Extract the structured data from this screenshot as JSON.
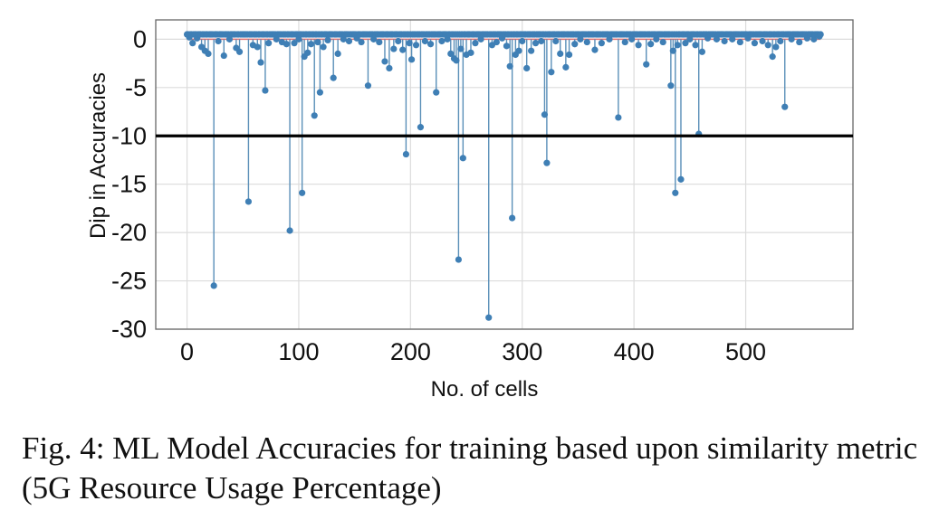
{
  "figure": {
    "caption": "Fig. 4: ML Model Accuracies for training based upon similarity metric (5G Resource Usage Percentage)"
  },
  "chart_data": {
    "type": "scatter",
    "style": "stem",
    "title": "",
    "xlabel": "No. of cells",
    "ylabel": "Dip in Accuracies",
    "xlim": [
      -28,
      596
    ],
    "ylim": [
      -30,
      2
    ],
    "xticks": [
      0,
      100,
      200,
      300,
      400,
      500
    ],
    "yticks": [
      0,
      -5,
      -10,
      -15,
      -20,
      -25,
      -30
    ],
    "grid": true,
    "point_color": "#3f7fb5",
    "stem_color": "#5a8fb8",
    "baseline_color": "#e07070",
    "threshold_color": "#000000",
    "threshold": -10,
    "n_points": 568,
    "baseline_value": 0.5,
    "dips": [
      {
        "x": 2,
        "y": 0.2
      },
      {
        "x": 5,
        "y": -0.4
      },
      {
        "x": 9,
        "y": 0.1
      },
      {
        "x": 13,
        "y": -0.8
      },
      {
        "x": 16,
        "y": -1.2
      },
      {
        "x": 19,
        "y": -1.5
      },
      {
        "x": 24,
        "y": -25.5
      },
      {
        "x": 28,
        "y": -0.2
      },
      {
        "x": 33,
        "y": -1.7
      },
      {
        "x": 38,
        "y": 0.0
      },
      {
        "x": 44,
        "y": -0.9
      },
      {
        "x": 47,
        "y": -1.3
      },
      {
        "x": 55,
        "y": -16.8
      },
      {
        "x": 59,
        "y": -0.6
      },
      {
        "x": 63,
        "y": -0.8
      },
      {
        "x": 66,
        "y": -2.4
      },
      {
        "x": 70,
        "y": -5.3
      },
      {
        "x": 73,
        "y": -0.4
      },
      {
        "x": 80,
        "y": 0.0
      },
      {
        "x": 85,
        "y": -0.3
      },
      {
        "x": 89,
        "y": -0.5
      },
      {
        "x": 92,
        "y": -19.8
      },
      {
        "x": 96,
        "y": -0.4
      },
      {
        "x": 100,
        "y": 0.0
      },
      {
        "x": 103,
        "y": -15.9
      },
      {
        "x": 105,
        "y": -1.8
      },
      {
        "x": 108,
        "y": -1.4
      },
      {
        "x": 111,
        "y": -0.5
      },
      {
        "x": 114,
        "y": -7.9
      },
      {
        "x": 117,
        "y": -0.3
      },
      {
        "x": 119,
        "y": -5.5
      },
      {
        "x": 122,
        "y": -0.8
      },
      {
        "x": 126,
        "y": -0.1
      },
      {
        "x": 131,
        "y": -4.0
      },
      {
        "x": 135,
        "y": -1.5
      },
      {
        "x": 140,
        "y": 0.0
      },
      {
        "x": 145,
        "y": -0.2
      },
      {
        "x": 152,
        "y": 0.1
      },
      {
        "x": 156,
        "y": -0.3
      },
      {
        "x": 162,
        "y": -4.8
      },
      {
        "x": 167,
        "y": 0.0
      },
      {
        "x": 172,
        "y": -0.3
      },
      {
        "x": 177,
        "y": -2.3
      },
      {
        "x": 181,
        "y": -3.0
      },
      {
        "x": 185,
        "y": -1.0
      },
      {
        "x": 189,
        "y": -0.2
      },
      {
        "x": 193,
        "y": -1.1
      },
      {
        "x": 196,
        "y": -11.9
      },
      {
        "x": 199,
        "y": -0.4
      },
      {
        "x": 201,
        "y": -2.1
      },
      {
        "x": 205,
        "y": -0.6
      },
      {
        "x": 209,
        "y": -9.1
      },
      {
        "x": 213,
        "y": -0.2
      },
      {
        "x": 218,
        "y": -0.5
      },
      {
        "x": 223,
        "y": -5.5
      },
      {
        "x": 228,
        "y": -0.2
      },
      {
        "x": 233,
        "y": 0.0
      },
      {
        "x": 236,
        "y": -1.5
      },
      {
        "x": 239,
        "y": -2.0
      },
      {
        "x": 241,
        "y": -2.2
      },
      {
        "x": 243,
        "y": -22.8
      },
      {
        "x": 245,
        "y": -1.0
      },
      {
        "x": 247,
        "y": -12.3
      },
      {
        "x": 250,
        "y": -1.6
      },
      {
        "x": 254,
        "y": -1.4
      },
      {
        "x": 258,
        "y": -0.4
      },
      {
        "x": 263,
        "y": 0.0
      },
      {
        "x": 270,
        "y": -28.8
      },
      {
        "x": 273,
        "y": -0.6
      },
      {
        "x": 277,
        "y": -0.3
      },
      {
        "x": 282,
        "y": 0.1
      },
      {
        "x": 286,
        "y": -0.7
      },
      {
        "x": 289,
        "y": -2.8
      },
      {
        "x": 291,
        "y": -18.5
      },
      {
        "x": 294,
        "y": -1.6
      },
      {
        "x": 297,
        "y": -1.2
      },
      {
        "x": 300,
        "y": -0.2
      },
      {
        "x": 304,
        "y": -3.0
      },
      {
        "x": 308,
        "y": -1.2
      },
      {
        "x": 312,
        "y": -0.4
      },
      {
        "x": 317,
        "y": -0.2
      },
      {
        "x": 320,
        "y": -7.8
      },
      {
        "x": 322,
        "y": -12.8
      },
      {
        "x": 326,
        "y": -3.4
      },
      {
        "x": 330,
        "y": -0.2
      },
      {
        "x": 334,
        "y": -1.5
      },
      {
        "x": 339,
        "y": -2.9
      },
      {
        "x": 342,
        "y": -1.6
      },
      {
        "x": 347,
        "y": -0.5
      },
      {
        "x": 352,
        "y": 0.0
      },
      {
        "x": 358,
        "y": -0.3
      },
      {
        "x": 365,
        "y": -1.1
      },
      {
        "x": 371,
        "y": -0.4
      },
      {
        "x": 378,
        "y": 0.0
      },
      {
        "x": 386,
        "y": -8.1
      },
      {
        "x": 392,
        "y": -0.3
      },
      {
        "x": 398,
        "y": 0.0
      },
      {
        "x": 404,
        "y": -0.6
      },
      {
        "x": 411,
        "y": -2.6
      },
      {
        "x": 415,
        "y": -0.5
      },
      {
        "x": 420,
        "y": 0.0
      },
      {
        "x": 426,
        "y": -0.3
      },
      {
        "x": 433,
        "y": -4.8
      },
      {
        "x": 435,
        "y": -1.2
      },
      {
        "x": 437,
        "y": -15.9
      },
      {
        "x": 439,
        "y": -0.6
      },
      {
        "x": 442,
        "y": -14.5
      },
      {
        "x": 446,
        "y": -0.4
      },
      {
        "x": 450,
        "y": 0.0
      },
      {
        "x": 455,
        "y": -0.6
      },
      {
        "x": 458,
        "y": -9.8
      },
      {
        "x": 461,
        "y": -1.3
      },
      {
        "x": 466,
        "y": 0.1
      },
      {
        "x": 474,
        "y": 0.0
      },
      {
        "x": 481,
        "y": -0.2
      },
      {
        "x": 488,
        "y": 0.0
      },
      {
        "x": 495,
        "y": -0.3
      },
      {
        "x": 502,
        "y": 0.1
      },
      {
        "x": 508,
        "y": -0.4
      },
      {
        "x": 515,
        "y": -0.2
      },
      {
        "x": 520,
        "y": -0.6
      },
      {
        "x": 524,
        "y": -1.8
      },
      {
        "x": 527,
        "y": -0.8
      },
      {
        "x": 531,
        "y": -0.2
      },
      {
        "x": 535,
        "y": -7.0
      },
      {
        "x": 541,
        "y": 0.0
      },
      {
        "x": 548,
        "y": -0.3
      },
      {
        "x": 555,
        "y": 0.1
      },
      {
        "x": 561,
        "y": 0.0
      },
      {
        "x": 566,
        "y": 0.3
      }
    ]
  }
}
